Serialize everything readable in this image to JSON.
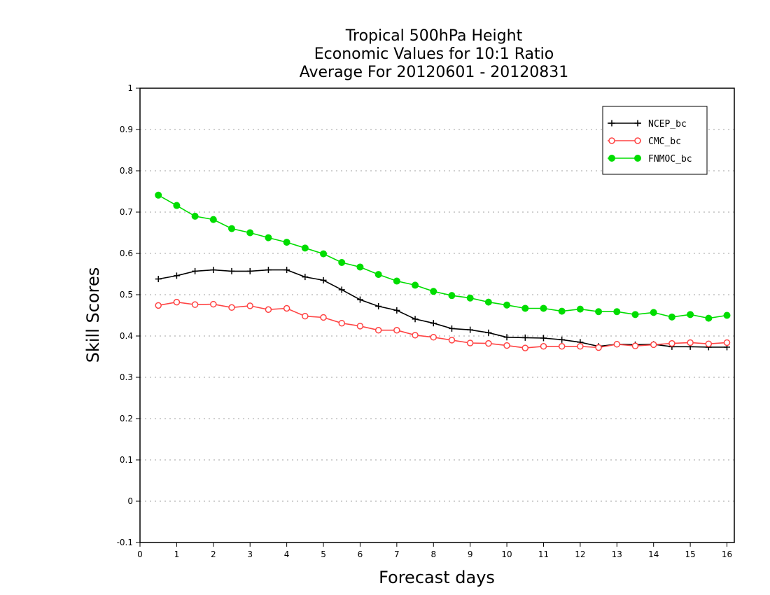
{
  "chart_data": {
    "type": "line",
    "title_lines": [
      "Tropical 500hPa Height",
      "Economic Values for 10:1 Ratio",
      "Average For 20120601 - 20120831"
    ],
    "xlabel": "Forecast days",
    "ylabel": "Skill Scores",
    "xlim": [
      0,
      16.2
    ],
    "ylim": [
      -0.1,
      1
    ],
    "x_ticks": [
      0,
      1,
      2,
      3,
      4,
      5,
      6,
      7,
      8,
      9,
      10,
      11,
      12,
      13,
      14,
      15,
      16
    ],
    "x_tick_labels": [
      "0",
      "1",
      "2",
      "3",
      "4",
      "5",
      "6",
      "7",
      "8",
      "9",
      "10",
      "11",
      "12",
      "13",
      "14",
      "15",
      "16"
    ],
    "y_ticks": [
      -0.1,
      0,
      0.1,
      0.2,
      0.3,
      0.4,
      0.5,
      0.6,
      0.7,
      0.8,
      0.9,
      1
    ],
    "y_tick_labels": [
      "-0.1",
      "0",
      "0.1",
      "0.2",
      "0.3",
      "0.4",
      "0.5",
      "0.6",
      "0.7",
      "0.8",
      "0.9",
      "1"
    ],
    "grid": "horizontal dotted",
    "legend_position": "top-right",
    "x": [
      0.5,
      1,
      1.5,
      2,
      2.5,
      3,
      3.5,
      4,
      4.5,
      5,
      5.5,
      6,
      6.5,
      7,
      7.5,
      8,
      8.5,
      9,
      9.5,
      10,
      10.5,
      11,
      11.5,
      12,
      12.5,
      13,
      13.5,
      14,
      14.5,
      15,
      15.5,
      16
    ],
    "series": [
      {
        "name": "NCEP_bc",
        "color": "#000000",
        "marker": "plus",
        "values": [
          0.538,
          0.546,
          0.557,
          0.56,
          0.557,
          0.557,
          0.56,
          0.56,
          0.543,
          0.535,
          0.512,
          0.488,
          0.472,
          0.462,
          0.441,
          0.431,
          0.418,
          0.415,
          0.408,
          0.397,
          0.396,
          0.395,
          0.391,
          0.385,
          0.375,
          0.38,
          0.379,
          0.38,
          0.374,
          0.374,
          0.373,
          0.373
        ]
      },
      {
        "name": "CMC_bc",
        "color": "#ff4444",
        "marker": "open-circle",
        "values": [
          0.474,
          0.482,
          0.476,
          0.477,
          0.469,
          0.473,
          0.464,
          0.467,
          0.448,
          0.445,
          0.431,
          0.424,
          0.414,
          0.414,
          0.402,
          0.397,
          0.39,
          0.383,
          0.382,
          0.377,
          0.371,
          0.375,
          0.375,
          0.375,
          0.372,
          0.38,
          0.376,
          0.379,
          0.382,
          0.384,
          0.381,
          0.384
        ]
      },
      {
        "name": "FNMOC_bc",
        "color": "#00dd00",
        "marker": "filled-circle",
        "values": [
          0.741,
          0.716,
          0.69,
          0.682,
          0.66,
          0.65,
          0.638,
          0.627,
          0.613,
          0.599,
          0.578,
          0.567,
          0.549,
          0.533,
          0.523,
          0.508,
          0.498,
          0.492,
          0.482,
          0.475,
          0.467,
          0.467,
          0.46,
          0.465,
          0.459,
          0.459,
          0.452,
          0.457,
          0.446,
          0.452,
          0.443,
          0.45
        ]
      }
    ]
  }
}
